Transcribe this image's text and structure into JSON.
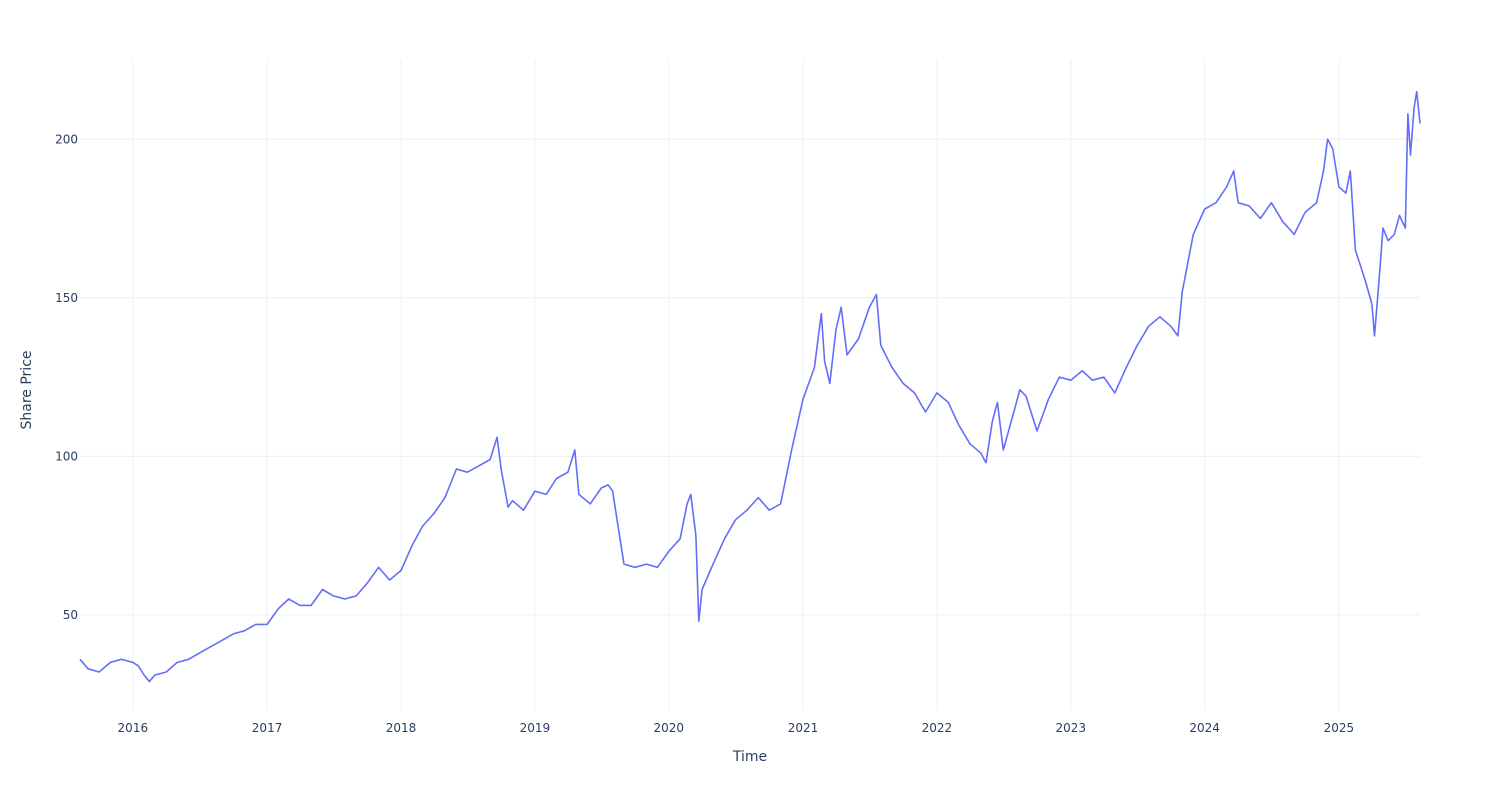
{
  "chart_data": {
    "type": "line",
    "title": "",
    "xlabel": "Time",
    "ylabel": "Share Price",
    "x_ticks": [
      "2016",
      "2017",
      "2018",
      "2019",
      "2020",
      "2021",
      "2022",
      "2023",
      "2024",
      "2025"
    ],
    "y_ticks": [
      "50",
      "100",
      "150",
      "200"
    ],
    "xlim": [
      "2015-08-10",
      "2025-08-10"
    ],
    "ylim": [
      20,
      225
    ],
    "grid": true,
    "legend": "none",
    "line_color": "#636efa",
    "series": [
      {
        "x": [
          "2015-08-10",
          "2015-09-01",
          "2015-10-01",
          "2015-11-01",
          "2015-12-01",
          "2016-01-01",
          "2016-01-15",
          "2016-02-01",
          "2016-02-15",
          "2016-03-01",
          "2016-04-01",
          "2016-05-01",
          "2016-06-01",
          "2016-07-01",
          "2016-08-01",
          "2016-09-01",
          "2016-10-01",
          "2016-11-01",
          "2016-12-01",
          "2017-01-01",
          "2017-02-01",
          "2017-03-01",
          "2017-04-01",
          "2017-05-01",
          "2017-06-01",
          "2017-07-01",
          "2017-08-01",
          "2017-09-01",
          "2017-10-01",
          "2017-11-01",
          "2017-12-01",
          "2018-01-01",
          "2018-02-01",
          "2018-03-01",
          "2018-04-01",
          "2018-05-01",
          "2018-06-01",
          "2018-07-01",
          "2018-08-01",
          "2018-09-01",
          "2018-09-20",
          "2018-10-01",
          "2018-10-20",
          "2018-11-01",
          "2018-12-01",
          "2019-01-01",
          "2019-02-01",
          "2019-03-01",
          "2019-04-01",
          "2019-04-20",
          "2019-05-01",
          "2019-06-01",
          "2019-07-01",
          "2019-07-20",
          "2019-08-01",
          "2019-09-01",
          "2019-10-01",
          "2019-11-01",
          "2019-12-01",
          "2020-01-01",
          "2020-02-01",
          "2020-02-20",
          "2020-03-01",
          "2020-03-15",
          "2020-03-23",
          "2020-04-01",
          "2020-05-01",
          "2020-06-01",
          "2020-07-01",
          "2020-08-01",
          "2020-09-01",
          "2020-10-01",
          "2020-11-01",
          "2020-12-01",
          "2021-01-01",
          "2021-02-01",
          "2021-02-20",
          "2021-03-01",
          "2021-03-15",
          "2021-04-01",
          "2021-04-15",
          "2021-05-01",
          "2021-06-01",
          "2021-07-01",
          "2021-07-20",
          "2021-08-01",
          "2021-09-01",
          "2021-10-01",
          "2021-11-01",
          "2021-12-01",
          "2022-01-01",
          "2022-02-01",
          "2022-03-01",
          "2022-04-01",
          "2022-05-01",
          "2022-05-15",
          "2022-06-01",
          "2022-06-15",
          "2022-07-01",
          "2022-08-01",
          "2022-08-15",
          "2022-09-01",
          "2022-10-01",
          "2022-11-01",
          "2022-12-01",
          "2023-01-01",
          "2023-02-01",
          "2023-03-01",
          "2023-04-01",
          "2023-05-01",
          "2023-06-01",
          "2023-07-01",
          "2023-08-01",
          "2023-09-01",
          "2023-10-01",
          "2023-10-20",
          "2023-11-01",
          "2023-12-01",
          "2024-01-01",
          "2024-02-01",
          "2024-03-01",
          "2024-03-20",
          "2024-04-01",
          "2024-05-01",
          "2024-06-01",
          "2024-07-01",
          "2024-08-01",
          "2024-09-01",
          "2024-10-01",
          "2024-11-01",
          "2024-11-20",
          "2024-12-01",
          "2024-12-15",
          "2025-01-01",
          "2025-01-20",
          "2025-02-01",
          "2025-02-15",
          "2025-03-01",
          "2025-03-15",
          "2025-04-01",
          "2025-04-08",
          "2025-04-20",
          "2025-05-01",
          "2025-05-15",
          "2025-06-01",
          "2025-06-15",
          "2025-07-01",
          "2025-07-08",
          "2025-07-15",
          "2025-07-25",
          "2025-08-01",
          "2025-08-10"
        ],
        "y": [
          36,
          33,
          32,
          35,
          36,
          35,
          34,
          31,
          29,
          31,
          32,
          35,
          36,
          38,
          40,
          42,
          44,
          45,
          47,
          47,
          52,
          55,
          53,
          53,
          58,
          56,
          55,
          56,
          60,
          65,
          61,
          64,
          72,
          78,
          82,
          87,
          96,
          95,
          97,
          99,
          106,
          96,
          84,
          86,
          83,
          89,
          88,
          93,
          95,
          102,
          88,
          85,
          90,
          91,
          89,
          66,
          65,
          66,
          65,
          70,
          74,
          85,
          88,
          75,
          48,
          58,
          66,
          74,
          80,
          83,
          87,
          83,
          85,
          102,
          118,
          128,
          145,
          130,
          123,
          140,
          147,
          132,
          137,
          147,
          151,
          135,
          128,
          123,
          120,
          114,
          120,
          117,
          110,
          104,
          101,
          98,
          111,
          117,
          102,
          115,
          121,
          119,
          108,
          118,
          125,
          124,
          127,
          124,
          125,
          120,
          128,
          135,
          141,
          144,
          141,
          138,
          152,
          170,
          178,
          180,
          185,
          190,
          180,
          179,
          175,
          180,
          174,
          170,
          177,
          180,
          190,
          200,
          197,
          185,
          183,
          190,
          165,
          160,
          155,
          148,
          138,
          155,
          172,
          168,
          170,
          176,
          172,
          208,
          195,
          210,
          215,
          205
        ]
      }
    ]
  }
}
